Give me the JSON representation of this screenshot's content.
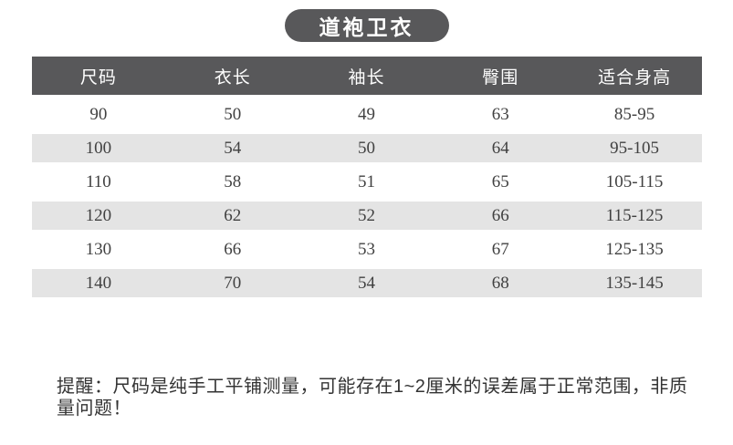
{
  "page": {
    "background_color": "#ffffff"
  },
  "title": {
    "label": "道袍卫衣",
    "bg_color": "#58585a",
    "text_color": "#ffffff"
  },
  "size_chart": {
    "type": "table",
    "header_bg_color": "#58585a",
    "header_text_color": "#ffffff",
    "stripe_bg_color": "#e4e4e4",
    "cell_text_color": "#414141",
    "columns": [
      "尺码",
      "衣长",
      "袖长",
      "臀围",
      "适合身高"
    ],
    "rows": [
      [
        "90",
        "50",
        "49",
        "63",
        "85-95"
      ],
      [
        "100",
        "54",
        "50",
        "64",
        "95-105"
      ],
      [
        "110",
        "58",
        "51",
        "65",
        "105-115"
      ],
      [
        "120",
        "62",
        "52",
        "66",
        "115-125"
      ],
      [
        "130",
        "66",
        "53",
        "67",
        "125-135"
      ],
      [
        "140",
        "70",
        "54",
        "68",
        "135-145"
      ]
    ]
  },
  "note": {
    "text": "提醒：尺码是纯手工平铺测量，可能存在1~2厘米的误差属于正常范围，非质量问题！",
    "text_color": "#333333"
  }
}
